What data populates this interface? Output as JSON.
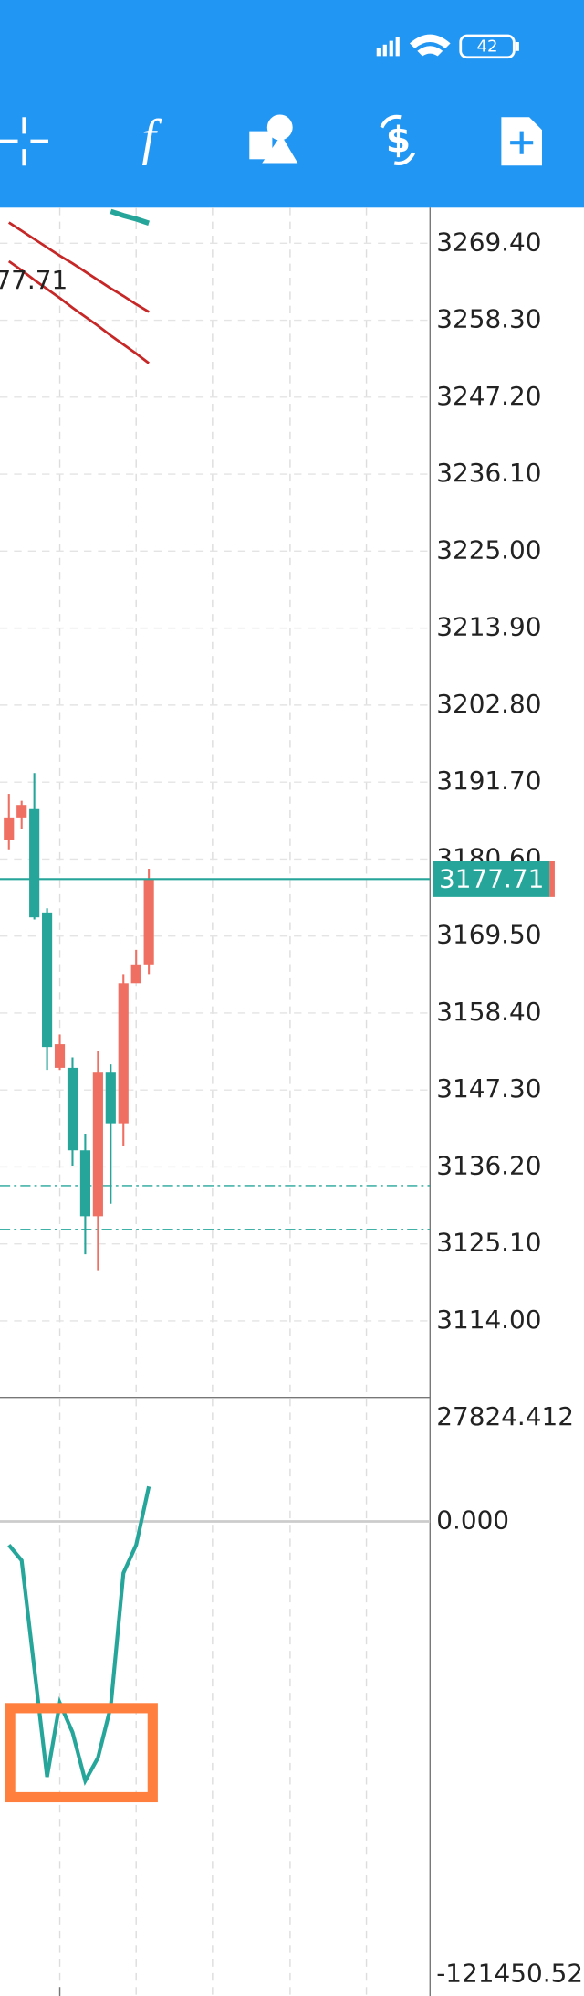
{
  "status_bar": {
    "battery": "42"
  },
  "toolbar": {
    "function_icon": "f"
  },
  "chart_data": [
    {
      "type": "candlestick",
      "up_color": "#ef6f62",
      "down_color": "#26a69a",
      "cut_label": "77.71",
      "open": [
        3183.4,
        3186.6,
        3187.8,
        3172.9,
        3150.5,
        3150.5,
        3138.6,
        3129.1,
        3149.8,
        3142.5,
        3162.7,
        3165.4
      ],
      "high": [
        3190.0,
        3189.0,
        3193.0,
        3173.5,
        3155.3,
        3152.0,
        3141.0,
        3152.9,
        3151.0,
        3164.0,
        3167.5,
        3179.2
      ],
      "low": [
        3182.0,
        3185.0,
        3171.9,
        3150.2,
        3150.2,
        3136.4,
        3123.6,
        3121.3,
        3130.9,
        3139.2,
        3164.0,
        3164.0
      ],
      "close": [
        3186.6,
        3188.4,
        3172.2,
        3153.5,
        3153.9,
        3138.6,
        3129.1,
        3149.8,
        3142.5,
        3162.7,
        3165.4,
        3177.71
      ],
      "lines": [
        {
          "color": "#c62828",
          "values": [
            3272.4,
            3271.2,
            3270.0,
            3268.8,
            3267.6,
            3266.5,
            3265.3,
            3264.1,
            3262.9,
            3261.8,
            3260.6,
            3259.5
          ]
        },
        {
          "color": "#c62828",
          "values": [
            3266.8,
            3265.5,
            3264.1,
            3262.8,
            3261.5,
            3260.1,
            3258.8,
            3257.5,
            3256.1,
            3254.8,
            3253.5,
            3252.1
          ]
        },
        {
          "color": "#26a69a",
          "values": [
            null,
            null,
            null,
            null,
            null,
            null,
            null,
            null,
            3274.0,
            3273.4,
            3272.9,
            3272.3
          ]
        }
      ],
      "levels": [
        3133.5,
        3127.2
      ],
      "current_price": {
        "value": 3177.71,
        "label": "3177.71"
      },
      "ylim": [
        3102.98,
        3274.54
      ],
      "yticks": [
        {
          "value": 3269.4,
          "label": "3269.40"
        },
        {
          "value": 3258.3,
          "label": "3258.30"
        },
        {
          "value": 3247.2,
          "label": "3247.20"
        },
        {
          "value": 3236.1,
          "label": "3236.10"
        },
        {
          "value": 3225,
          "label": "3225.00"
        },
        {
          "value": 3213.9,
          "label": "3213.90"
        },
        {
          "value": 3202.8,
          "label": "3202.80"
        },
        {
          "value": 3191.7,
          "label": "3191.70"
        },
        {
          "value": 3180.6,
          "label": "3180.60"
        },
        {
          "value": 3169.5,
          "label": "3169.50"
        },
        {
          "value": 3158.4,
          "label": "3158.40"
        },
        {
          "value": 3147.3,
          "label": "3147.30"
        },
        {
          "value": 3136.2,
          "label": "3136.20"
        },
        {
          "value": 3125.1,
          "label": "3125.10"
        },
        {
          "value": 3114,
          "label": "3114.00"
        }
      ]
    },
    {
      "type": "line",
      "color": "#26a69a",
      "values": [
        -6336,
        -10435,
        -39470,
        -68507,
        -48694,
        -56550,
        -69540,
        -63380,
        -49720,
        -13850,
        -6336,
        9378
      ],
      "ylim": [
        -127262,
        33290
      ],
      "yticks": [
        {
          "value": 27824.412,
          "label": "27824.412"
        },
        {
          "value": 0,
          "label": "0.000"
        },
        {
          "value": -121450.52,
          "label": "-121450.52"
        }
      ]
    }
  ]
}
